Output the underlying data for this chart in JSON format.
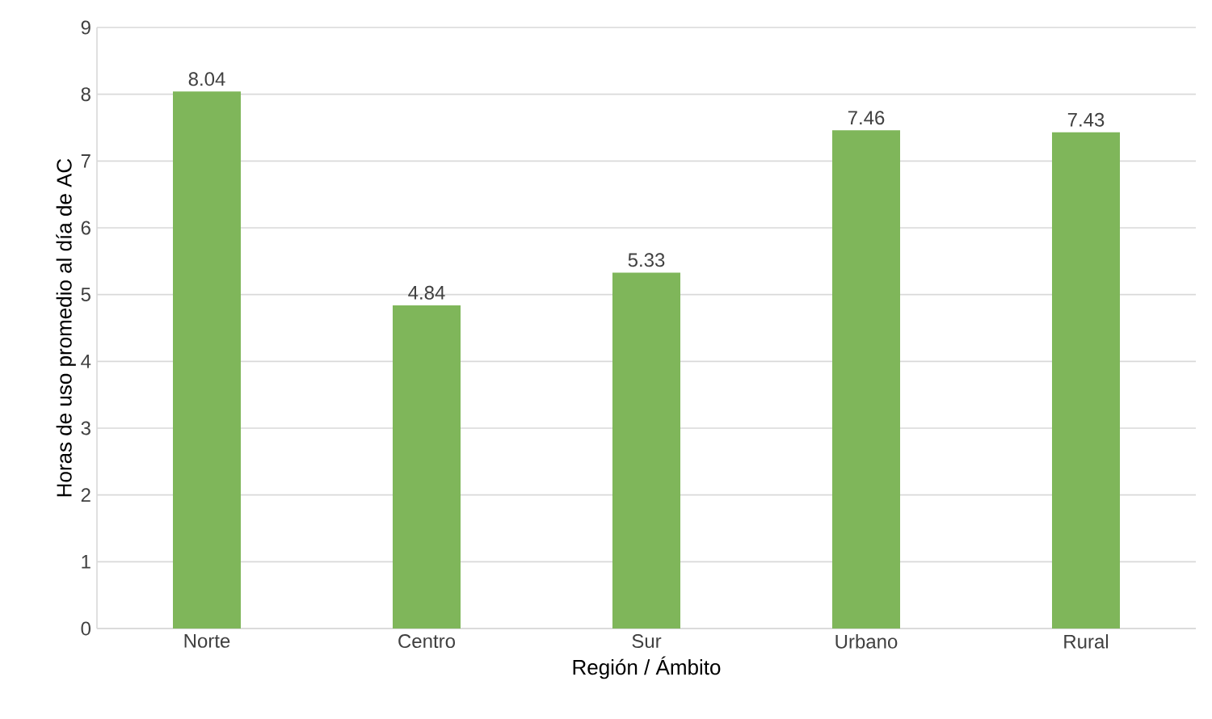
{
  "chart_data": {
    "type": "bar",
    "xlabel": "Región / Ámbito",
    "ylabel": "Horas de uso promedio al día de AC",
    "categories": [
      "Norte",
      "Centro",
      "Sur",
      "Urbano",
      "Rural"
    ],
    "values": [
      8.04,
      4.84,
      5.33,
      7.46,
      7.43
    ],
    "color": "#7fb65a",
    "ylim": [
      0,
      9
    ],
    "yticks": [
      0,
      1,
      2,
      3,
      4,
      5,
      6,
      7,
      8,
      9
    ],
    "grid": "y",
    "data_labels": true
  }
}
